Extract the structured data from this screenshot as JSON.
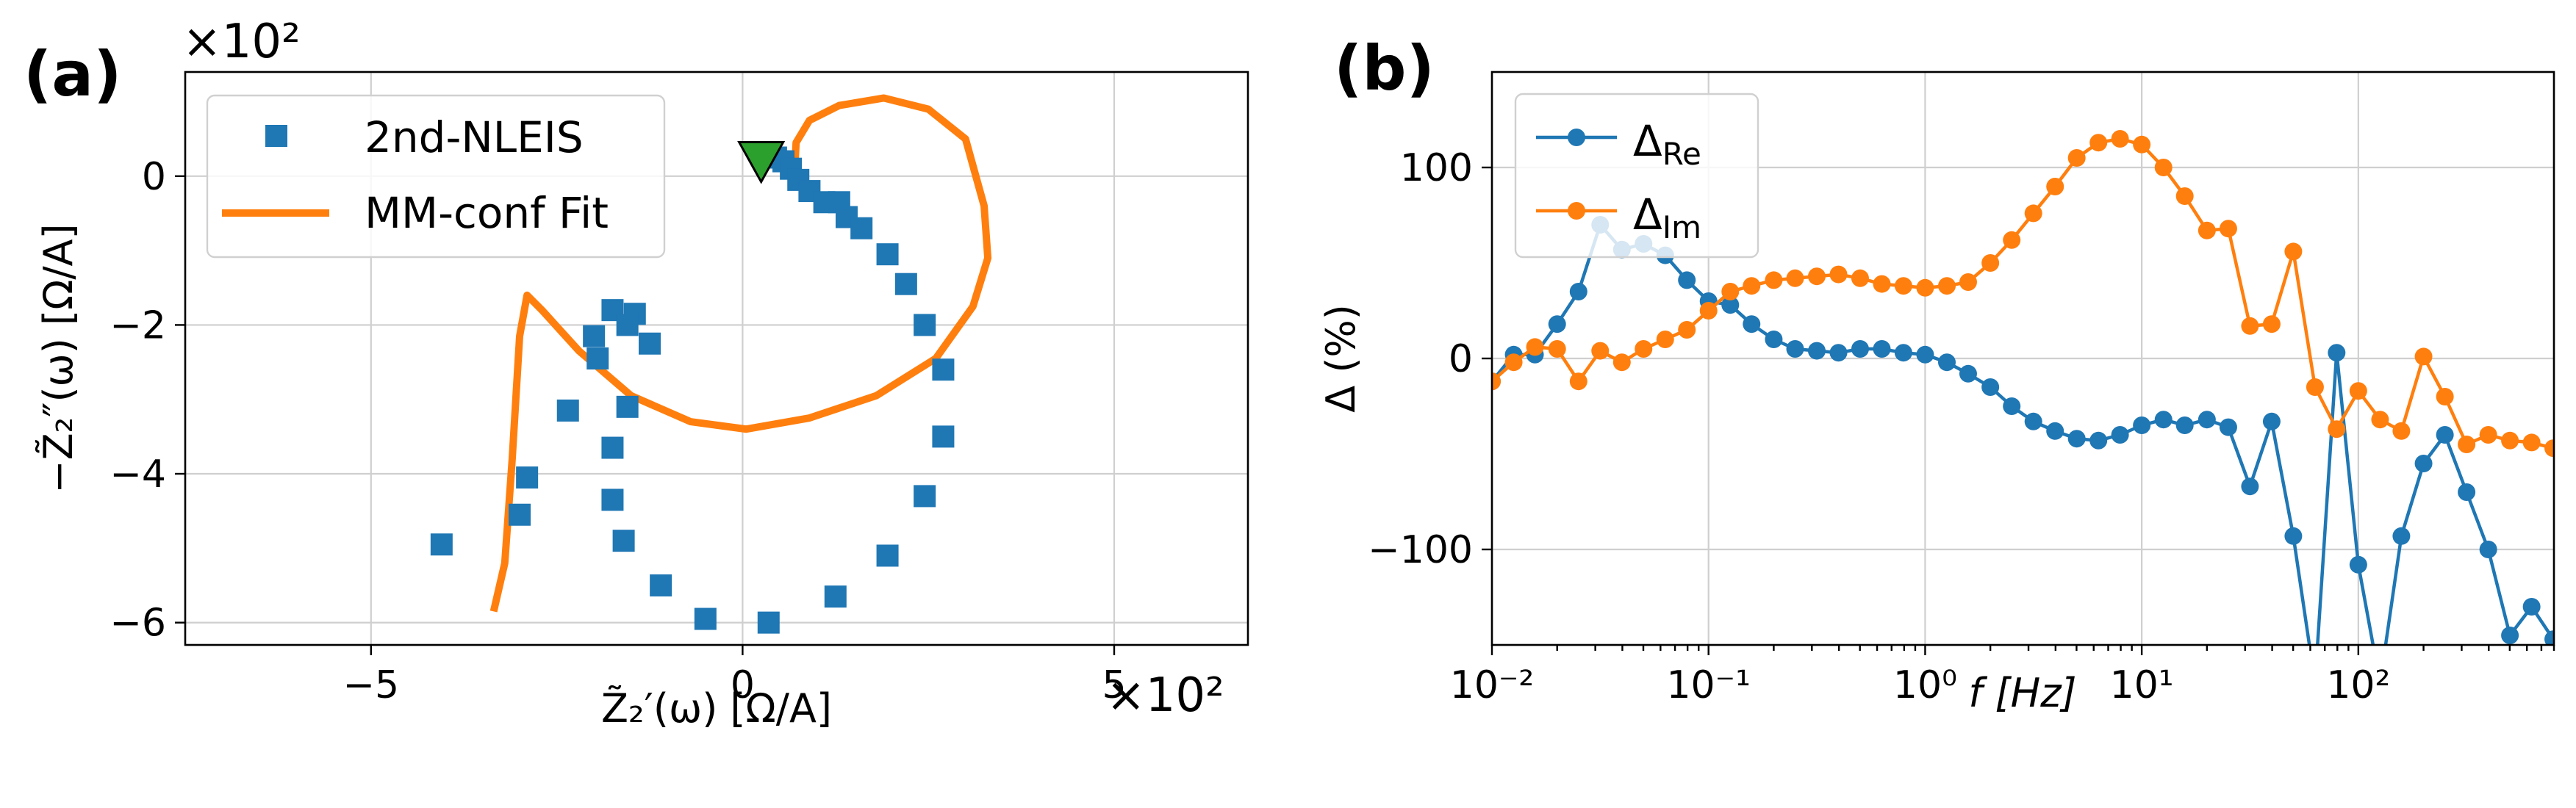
{
  "colors": {
    "blue": "#1f77b4",
    "orange": "#ff7f0e",
    "green": "#2ca02c",
    "grid": "#cfcfcf"
  },
  "panel_a": {
    "label": "(a)",
    "x_multiplier": "×10²",
    "y_multiplier": "×10²",
    "xlabel": "Z̃₂′(ω) [Ω/A]",
    "ylabel": "−Z̃₂″(ω) [Ω/A]",
    "legend": [
      {
        "label": "2nd-NLEIS",
        "marker": "square",
        "color": "#1f77b4"
      },
      {
        "label": "MM-conf Fit",
        "marker": "line",
        "color": "#ff7f0e"
      }
    ]
  },
  "panel_b": {
    "label": "(b)",
    "xlabel": "f [Hz]",
    "ylabel": "Δ (%)",
    "legend": [
      {
        "symbol": "Δ",
        "sub": "Re",
        "color": "#1f77b4"
      },
      {
        "symbol": "Δ",
        "sub": "Im",
        "color": "#ff7f0e"
      }
    ]
  },
  "chart_data": [
    {
      "type": "scatter",
      "title": "",
      "xlabel": "Z̃₂′(ω) [Ω/A]",
      "ylabel": "−Z̃₂″(ω) [Ω/A]",
      "xlim": [
        -7.5,
        6.8
      ],
      "ylim": [
        -6.3,
        1.4
      ],
      "x_ticks": [
        -5,
        0,
        5
      ],
      "x_tick_labels": [
        "−5",
        "0",
        "5"
      ],
      "y_ticks": [
        0,
        -2,
        -4,
        -6
      ],
      "y_tick_labels": [
        "0",
        "−2",
        "−4",
        "−6"
      ],
      "grid": true,
      "legend_position": "top-left",
      "series": [
        {
          "name": "2nd-NLEIS",
          "kind": "markers",
          "color": "#1f77b4",
          "x": [
            0.45,
            0.55,
            0.65,
            0.75,
            0.9,
            1.1,
            1.3,
            1.4,
            1.6,
            1.95,
            2.2,
            2.45,
            2.7,
            2.7,
            2.45,
            1.95,
            1.25,
            0.35,
            -0.5,
            -1.1,
            -1.6,
            -1.75,
            -1.75,
            -1.55,
            -1.25,
            -1.45,
            -1.75,
            -1.55,
            -1.95,
            -2.0,
            -2.35,
            -2.9,
            -3.0,
            -4.05
          ],
          "y": [
            0.25,
            0.2,
            0.1,
            -0.05,
            -0.2,
            -0.35,
            -0.35,
            -0.55,
            -0.7,
            -1.05,
            -1.45,
            -2.0,
            -2.6,
            -3.5,
            -4.3,
            -5.1,
            -5.65,
            -6.0,
            -5.95,
            -5.5,
            -4.9,
            -4.35,
            -3.65,
            -3.1,
            -2.25,
            -1.85,
            -1.8,
            -2.0,
            -2.45,
            -2.15,
            -3.15,
            -4.05,
            -4.55,
            -4.95
          ]
        },
        {
          "name": "MM-conf Fit",
          "kind": "line",
          "color": "#ff7f0e",
          "x": [
            0.7,
            0.72,
            0.9,
            1.3,
            1.9,
            2.5,
            3.0,
            3.25,
            3.3,
            3.1,
            2.6,
            1.8,
            0.9,
            0.05,
            -0.7,
            -1.5,
            -2.2,
            -2.7,
            -2.9,
            -3.0,
            -3.1,
            -3.2,
            -3.35
          ],
          "y": [
            0.05,
            0.45,
            0.75,
            0.95,
            1.05,
            0.9,
            0.5,
            -0.4,
            -1.1,
            -1.75,
            -2.45,
            -2.95,
            -3.25,
            -3.4,
            -3.3,
            -2.95,
            -2.35,
            -1.8,
            -1.6,
            -2.15,
            -3.8,
            -5.2,
            -5.85
          ]
        },
        {
          "name": "",
          "kind": "marker",
          "marker": "triangle-down",
          "color": "#2ca02c",
          "x": [
            0.25
          ],
          "y": [
            0.2
          ]
        }
      ]
    },
    {
      "type": "line",
      "title": "",
      "xlabel": "f [Hz]",
      "ylabel": "Δ (%)",
      "x_scale": "log",
      "xlim": [
        0.01,
        800
      ],
      "ylim": [
        -150,
        150
      ],
      "x_ticks": [
        0.01,
        0.1,
        1,
        10,
        100
      ],
      "x_tick_labels": [
        "10⁻²",
        "10⁻¹",
        "10⁰",
        "10¹",
        "10²"
      ],
      "y_ticks": [
        100,
        0,
        -100
      ],
      "y_tick_labels": [
        "100",
        "0",
        "−100"
      ],
      "grid": true,
      "legend_position": "top-left",
      "x": [
        0.01,
        0.0126,
        0.0158,
        0.02,
        0.0251,
        0.0316,
        0.0398,
        0.0501,
        0.0631,
        0.0794,
        0.1,
        0.126,
        0.158,
        0.2,
        0.251,
        0.316,
        0.398,
        0.501,
        0.631,
        0.794,
        1.0,
        1.26,
        1.58,
        2.0,
        2.51,
        3.16,
        3.98,
        5.01,
        6.31,
        7.94,
        10.0,
        12.6,
        15.8,
        20.0,
        25.1,
        31.6,
        39.8,
        50.1,
        63.1,
        79.4,
        100,
        126,
        158,
        200,
        251,
        316,
        398,
        501,
        631,
        794
      ],
      "series": [
        {
          "name": "Δ Re",
          "color": "#1f77b4",
          "values": [
            -12,
            2,
            2,
            18,
            35,
            70,
            57,
            60,
            54,
            41,
            30,
            28,
            18,
            10,
            5,
            4,
            3,
            5,
            5,
            3,
            2,
            -2,
            -8,
            -15,
            -25,
            -33,
            -38,
            -42,
            -43,
            -40,
            -35,
            -32,
            -35,
            -32,
            -36,
            -67,
            -33,
            -93,
            -170,
            3,
            -108,
            -170,
            -93,
            -55,
            -40,
            -70,
            -100,
            -145,
            -130,
            -147
          ]
        },
        {
          "name": "Δ Im",
          "color": "#ff7f0e",
          "values": [
            -12,
            -2,
            6,
            5,
            -12,
            4,
            -2,
            5,
            10,
            15,
            25,
            35,
            38,
            41,
            42,
            43,
            44,
            42,
            39,
            38,
            37,
            38,
            40,
            50,
            62,
            76,
            90,
            105,
            113,
            115,
            112,
            100,
            85,
            67,
            68,
            17,
            18,
            56,
            -15,
            -37,
            -17,
            -32,
            -38,
            1,
            -20,
            -45,
            -40,
            -43,
            -44,
            -47
          ]
        }
      ]
    }
  ]
}
